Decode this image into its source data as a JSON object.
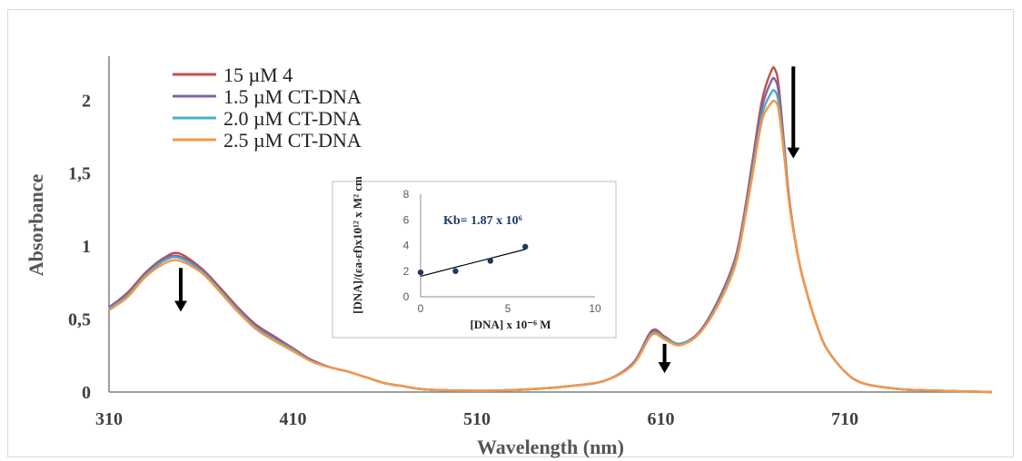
{
  "chart_data": [
    {
      "type": "line",
      "title": "",
      "xlabel": "Wavelength (nm)",
      "ylabel": "Absorbance",
      "xlim": [
        310,
        790
      ],
      "ylim": [
        0,
        2.3
      ],
      "x_ticks": [
        "310",
        "410",
        "510",
        "610",
        "710"
      ],
      "y_ticks": [
        "0",
        "0,5",
        "1",
        "1,5",
        "2"
      ],
      "legend_position": "top-left",
      "grid": false,
      "series": [
        {
          "name": "15 µM 4",
          "color": "#c0504d",
          "x": [
            310,
            320,
            330,
            340,
            348,
            360,
            370,
            380,
            390,
            400,
            410,
            420,
            430,
            440,
            450,
            460,
            470,
            480,
            500,
            520,
            540,
            560,
            580,
            595,
            605,
            612,
            620,
            630,
            640,
            650,
            655,
            660,
            665,
            670,
            672,
            674,
            677,
            680,
            685,
            690,
            695,
            700,
            710,
            720,
            740,
            760,
            790
          ],
          "y": [
            0.58,
            0.68,
            0.82,
            0.92,
            0.95,
            0.85,
            0.72,
            0.58,
            0.46,
            0.38,
            0.3,
            0.22,
            0.17,
            0.14,
            0.1,
            0.06,
            0.04,
            0.02,
            0.01,
            0.01,
            0.02,
            0.04,
            0.08,
            0.2,
            0.42,
            0.38,
            0.33,
            0.4,
            0.6,
            0.9,
            1.2,
            1.6,
            2.0,
            2.2,
            2.21,
            2.1,
            1.7,
            1.3,
            0.9,
            0.65,
            0.45,
            0.3,
            0.14,
            0.06,
            0.02,
            0.01,
            0.0
          ]
        },
        {
          "name": "1.5 µM CT-DNA",
          "color": "#8064a2",
          "x": [
            310,
            320,
            330,
            340,
            348,
            360,
            370,
            380,
            390,
            400,
            410,
            420,
            430,
            440,
            450,
            460,
            470,
            480,
            500,
            520,
            540,
            560,
            580,
            595,
            605,
            612,
            620,
            630,
            640,
            650,
            655,
            660,
            665,
            670,
            672,
            674,
            677,
            680,
            685,
            690,
            695,
            700,
            710,
            720,
            740,
            760,
            790
          ],
          "y": [
            0.58,
            0.67,
            0.81,
            0.91,
            0.93,
            0.84,
            0.71,
            0.57,
            0.45,
            0.37,
            0.29,
            0.22,
            0.17,
            0.14,
            0.1,
            0.06,
            0.04,
            0.02,
            0.01,
            0.01,
            0.02,
            0.04,
            0.08,
            0.2,
            0.41,
            0.37,
            0.33,
            0.4,
            0.59,
            0.88,
            1.18,
            1.57,
            1.95,
            2.13,
            2.14,
            2.05,
            1.68,
            1.29,
            0.9,
            0.65,
            0.45,
            0.3,
            0.14,
            0.06,
            0.02,
            0.01,
            0.0
          ]
        },
        {
          "name": "2.0 µM CT-DNA",
          "color": "#4bacc6",
          "x": [
            310,
            320,
            330,
            340,
            348,
            360,
            370,
            380,
            390,
            400,
            410,
            420,
            430,
            440,
            450,
            460,
            470,
            480,
            500,
            520,
            540,
            560,
            580,
            595,
            605,
            612,
            620,
            630,
            640,
            650,
            655,
            660,
            665,
            670,
            672,
            674,
            677,
            680,
            685,
            690,
            695,
            700,
            710,
            720,
            740,
            760,
            790
          ],
          "y": [
            0.57,
            0.66,
            0.8,
            0.9,
            0.92,
            0.83,
            0.7,
            0.56,
            0.44,
            0.36,
            0.29,
            0.21,
            0.17,
            0.14,
            0.1,
            0.06,
            0.04,
            0.02,
            0.01,
            0.01,
            0.02,
            0.04,
            0.08,
            0.19,
            0.4,
            0.37,
            0.33,
            0.39,
            0.58,
            0.87,
            1.16,
            1.53,
            1.9,
            2.05,
            2.06,
            1.98,
            1.65,
            1.28,
            0.9,
            0.65,
            0.45,
            0.3,
            0.14,
            0.06,
            0.02,
            0.01,
            0.0
          ]
        },
        {
          "name": "2.5 µM CT-DNA",
          "color": "#f79646",
          "x": [
            310,
            320,
            330,
            340,
            348,
            360,
            370,
            380,
            390,
            400,
            410,
            420,
            430,
            440,
            450,
            460,
            470,
            480,
            500,
            520,
            540,
            560,
            580,
            595,
            605,
            612,
            620,
            630,
            640,
            650,
            655,
            660,
            665,
            670,
            672,
            674,
            677,
            680,
            685,
            690,
            695,
            700,
            710,
            720,
            740,
            760,
            790
          ],
          "y": [
            0.56,
            0.65,
            0.79,
            0.88,
            0.9,
            0.82,
            0.69,
            0.55,
            0.43,
            0.35,
            0.28,
            0.21,
            0.17,
            0.14,
            0.1,
            0.06,
            0.04,
            0.02,
            0.01,
            0.01,
            0.02,
            0.04,
            0.08,
            0.19,
            0.39,
            0.36,
            0.32,
            0.39,
            0.57,
            0.85,
            1.14,
            1.5,
            1.86,
            1.98,
            1.99,
            1.93,
            1.62,
            1.27,
            0.9,
            0.65,
            0.45,
            0.3,
            0.14,
            0.06,
            0.02,
            0.01,
            0.0
          ]
        }
      ],
      "annotations": [
        {
          "type": "arrow-down",
          "x": 349,
          "y_from": 0.85,
          "y_to": 0.55
        },
        {
          "type": "arrow-down",
          "x": 612,
          "y_from": 0.33,
          "y_to": 0.13
        },
        {
          "type": "arrow-down",
          "x": 682,
          "y_from": 2.23,
          "y_to": 1.6
        }
      ]
    },
    {
      "type": "scatter",
      "title": "",
      "xlabel": "[DNA] x 10⁻⁶ M",
      "ylabel": "[DNA]/(εa-εf)x10¹² x M² cm",
      "xlim": [
        0,
        10
      ],
      "ylim": [
        0,
        8
      ],
      "x_ticks": [
        "0",
        "5",
        "10"
      ],
      "y_ticks": [
        "0",
        "2",
        "4",
        "6",
        "8"
      ],
      "annotation": "Kb= 1.87 x 10⁶",
      "points": {
        "x": [
          0,
          2,
          4,
          6
        ],
        "y": [
          1.9,
          2.0,
          2.8,
          3.9
        ]
      },
      "fit_line": {
        "x": [
          0,
          6
        ],
        "y": [
          1.6,
          3.7
        ]
      }
    }
  ]
}
